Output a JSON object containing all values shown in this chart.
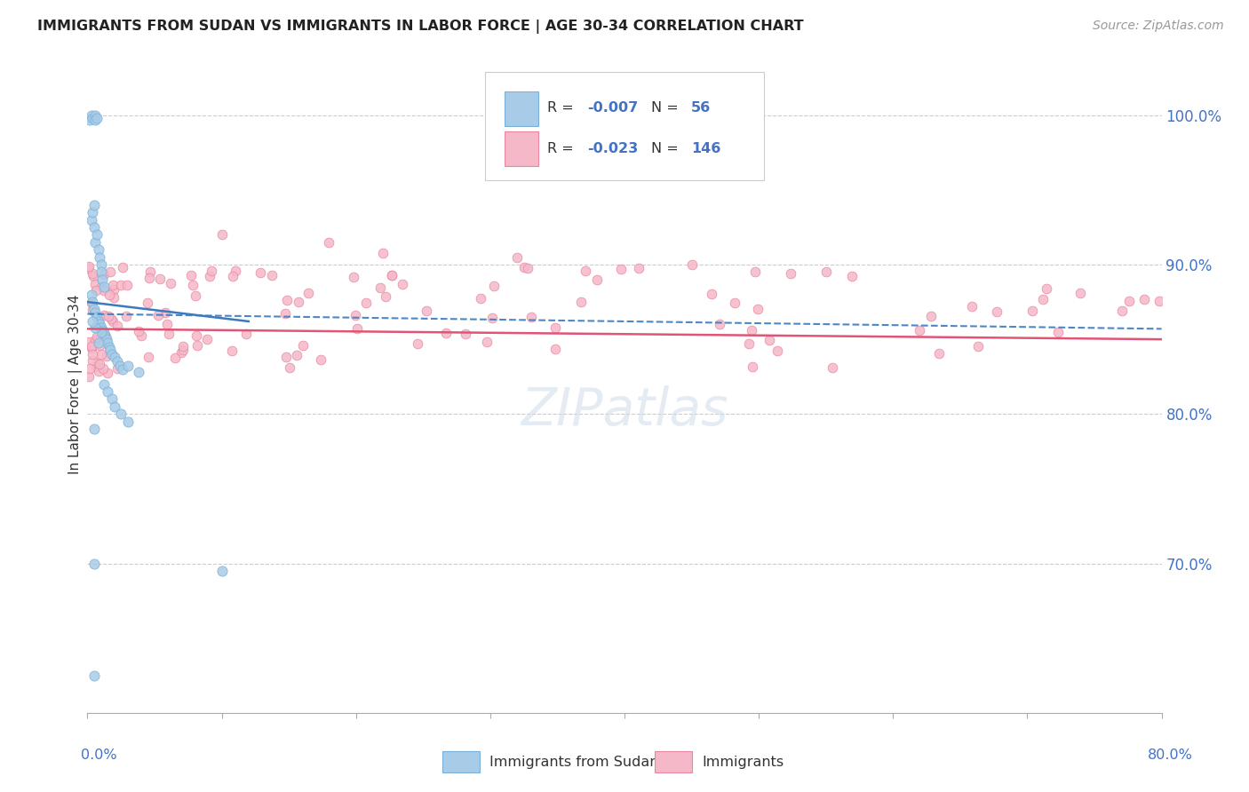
{
  "title": "IMMIGRANTS FROM SUDAN VS IMMIGRANTS IN LABOR FORCE | AGE 30-34 CORRELATION CHART",
  "source": "Source: ZipAtlas.com",
  "ylabel": "In Labor Force | Age 30-34",
  "blue_color": "#a8cce8",
  "blue_edge_color": "#7ab0d8",
  "pink_color": "#f5b8c8",
  "pink_edge_color": "#e888a0",
  "blue_line_color": "#3a7abf",
  "pink_line_color": "#e05575",
  "x_min": 0.0,
  "x_max": 0.8,
  "y_min": 0.6,
  "y_max": 1.04,
  "y_ticks": [
    0.7,
    0.8,
    0.9,
    1.0
  ],
  "y_tick_labels": [
    "70.0%",
    "80.0%",
    "90.0%",
    "100.0%"
  ],
  "watermark_text": "ZIPatlas",
  "legend_r1": "-0.007",
  "legend_n1": "56",
  "legend_r2": "-0.023",
  "legend_n2": "146",
  "bottom_label1": "Immigrants from Sudan",
  "bottom_label2": "Immigrants"
}
